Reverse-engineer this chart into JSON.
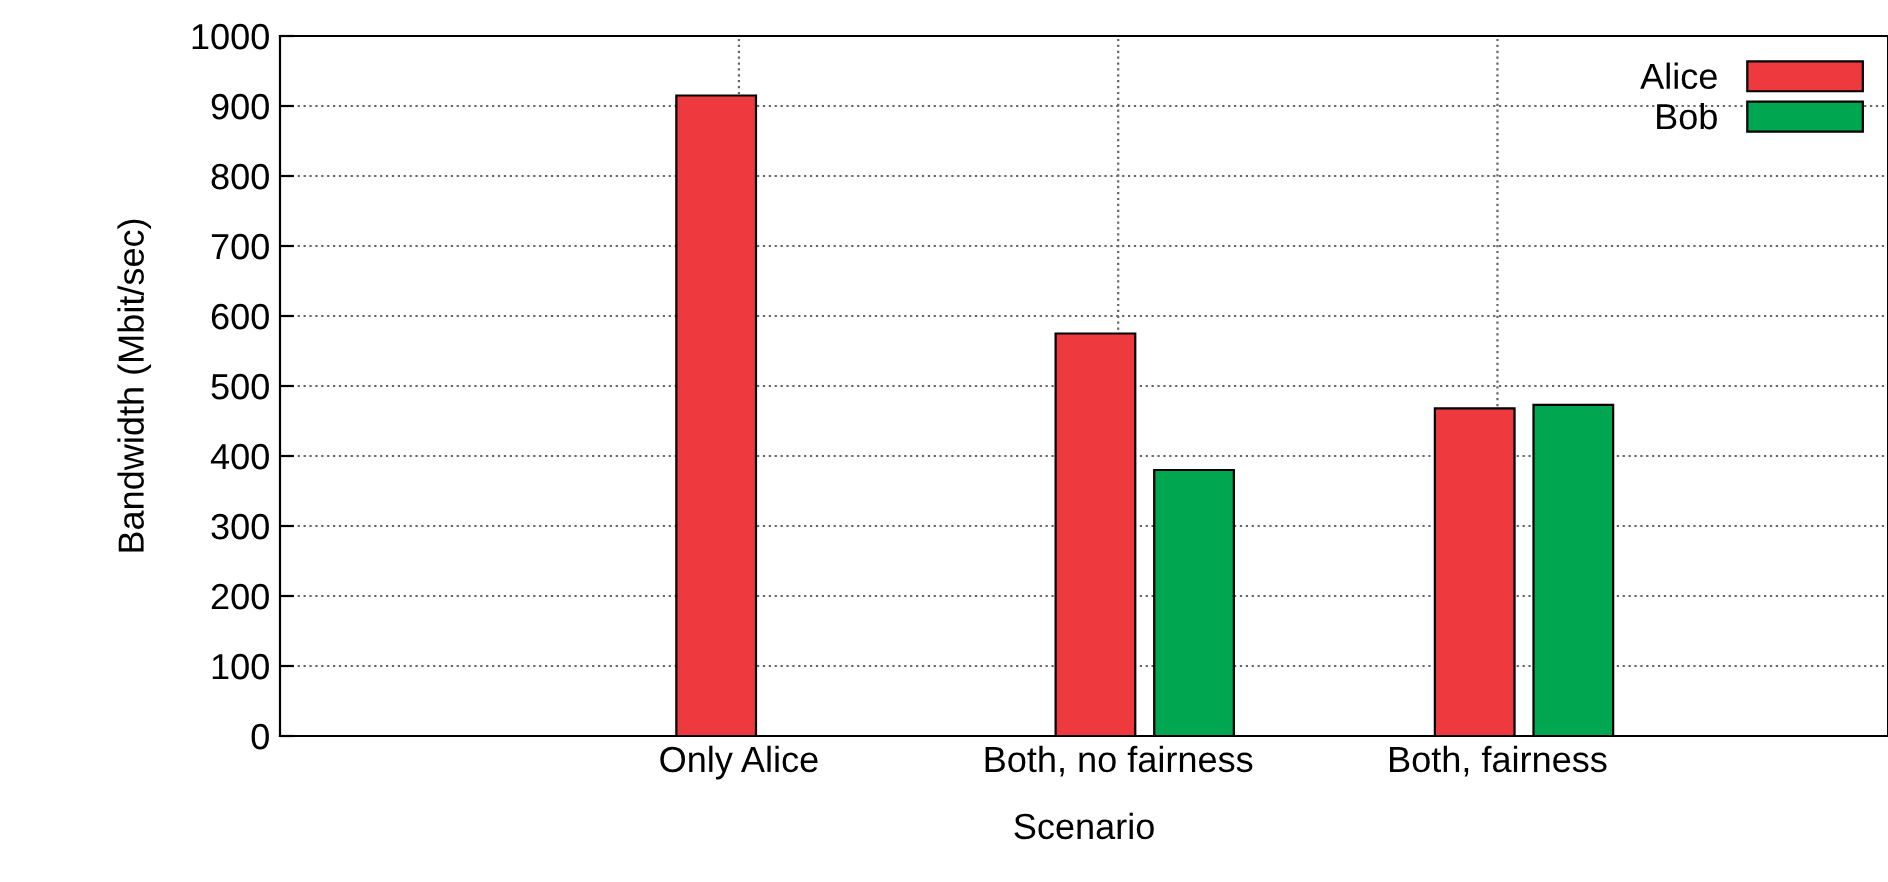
{
  "chart_data": {
    "type": "bar",
    "xlabel": "Scenario",
    "ylabel": "Bandwidth (Mbit/sec)",
    "categories": [
      "Only Alice",
      "Both, no fairness",
      "Both, fairness"
    ],
    "series": [
      {
        "name": "Alice",
        "color": "#ee3a3e",
        "values": [
          915,
          575,
          468
        ]
      },
      {
        "name": "Bob",
        "color": "#00a650",
        "values": [
          null,
          380,
          473
        ]
      }
    ],
    "ylim": [
      0,
      1000
    ],
    "yticks": [
      0,
      100,
      200,
      300,
      400,
      500,
      600,
      700,
      800,
      900,
      1000
    ],
    "grid": true,
    "legend": "top right"
  }
}
